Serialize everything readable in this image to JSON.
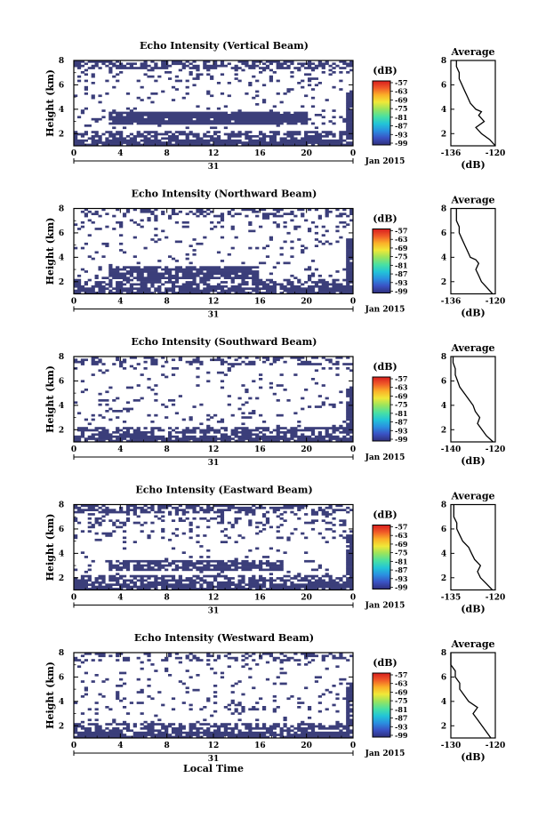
{
  "chart_data": [
    {
      "type": "heatmap",
      "title": "Echo Intensity (Vertical Beam)",
      "ylabel": "Height (km)",
      "ylim": [
        1,
        8
      ],
      "yticks": [
        "2",
        "4",
        "6",
        "8"
      ],
      "xlim": [
        0,
        24
      ],
      "xticks": [
        "0",
        "4",
        "8",
        "12",
        "16",
        "20",
        "0"
      ],
      "date_day": "31",
      "date_label": "Jan 2015",
      "colorbar": {
        "unit": "(dB)",
        "ticks": [
          "-57",
          "-63",
          "-69",
          "-75",
          "-81",
          "-87",
          "-93",
          "-99"
        ]
      },
      "features": {
        "top_band_cover": 0.55,
        "upper_cover": 0.12,
        "layer_km": [
          2.7,
          3.8
        ],
        "layer_cover": 0.95,
        "layer_hours": [
          3,
          20
        ],
        "low_cover": 0.9,
        "end_spike": true
      },
      "profile": {
        "title": "Average",
        "xlabel": "(dB)",
        "xlim": [
          -136,
          -120
        ],
        "xticks": [
          "-136",
          "-120"
        ],
        "yticks": [
          "2",
          "4",
          "6",
          "8"
        ],
        "height_km": [
          1.0,
          1.5,
          2.0,
          2.5,
          3.0,
          3.5,
          3.8,
          4.0,
          4.5,
          5.0,
          5.5,
          6.0,
          6.5,
          7.0,
          7.5,
          8.0
        ],
        "value_db": [
          -120,
          -122,
          -125,
          -127,
          -124,
          -126,
          -125,
          -127,
          -129,
          -130,
          -131,
          -132,
          -133,
          -133,
          -134,
          -134
        ]
      }
    },
    {
      "type": "heatmap",
      "title": "Echo Intensity (Northward Beam)",
      "ylabel": "Height (km)",
      "ylim": [
        1,
        8
      ],
      "yticks": [
        "2",
        "4",
        "6",
        "8"
      ],
      "xlim": [
        0,
        24
      ],
      "xticks": [
        "0",
        "4",
        "8",
        "12",
        "16",
        "20",
        "0"
      ],
      "date_day": "31",
      "date_label": "Jan 2015",
      "colorbar": {
        "unit": "(dB)",
        "ticks": [
          "-57",
          "-63",
          "-69",
          "-75",
          "-81",
          "-87",
          "-93",
          "-99"
        ]
      },
      "features": {
        "top_band_cover": 0.35,
        "upper_cover": 0.1,
        "layer_km": [
          2.3,
          3.3
        ],
        "layer_cover": 0.8,
        "layer_hours": [
          3,
          16
        ],
        "low_cover": 0.85,
        "end_spike": true
      },
      "profile": {
        "title": "Average",
        "xlabel": "(dB)",
        "xlim": [
          -136,
          -120
        ],
        "xticks": [
          "-136",
          "-120"
        ],
        "yticks": [
          "2",
          "4",
          "6",
          "8"
        ],
        "height_km": [
          1.0,
          1.5,
          2.0,
          2.5,
          3.0,
          3.5,
          3.8,
          4.0,
          4.5,
          5.0,
          5.5,
          6.0,
          6.5,
          7.0,
          7.5,
          8.0
        ],
        "value_db": [
          -121,
          -123,
          -125,
          -126,
          -127,
          -126,
          -127,
          -129,
          -130,
          -131,
          -132,
          -133,
          -133,
          -134,
          -134,
          -134
        ]
      }
    },
    {
      "type": "heatmap",
      "title": "Echo Intensity (Southward Beam)",
      "ylabel": "Height (km)",
      "ylim": [
        1,
        8
      ],
      "yticks": [
        "2",
        "4",
        "6",
        "8"
      ],
      "xlim": [
        0,
        24
      ],
      "xticks": [
        "0",
        "4",
        "8",
        "12",
        "16",
        "20",
        "0"
      ],
      "date_day": "31",
      "date_label": "Jan 2015",
      "colorbar": {
        "unit": "(dB)",
        "ticks": [
          "-57",
          "-63",
          "-69",
          "-75",
          "-81",
          "-87",
          "-93",
          "-99"
        ]
      },
      "features": {
        "top_band_cover": 0.3,
        "upper_cover": 0.06,
        "layer_km": [
          3.0,
          3.5
        ],
        "layer_cover": 0.15,
        "layer_hours": [
          11,
          13
        ],
        "low_cover": 0.85,
        "end_spike": true
      },
      "profile": {
        "title": "Average",
        "xlabel": "(dB)",
        "xlim": [
          -140,
          -120
        ],
        "xticks": [
          "-140",
          "-120"
        ],
        "yticks": [
          "2",
          "4",
          "6",
          "8"
        ],
        "height_km": [
          1.0,
          1.5,
          2.0,
          2.5,
          3.0,
          3.5,
          4.0,
          4.5,
          5.0,
          5.5,
          6.0,
          6.5,
          7.0,
          7.5,
          8.0
        ],
        "value_db": [
          -121,
          -124,
          -126,
          -128,
          -127,
          -129,
          -130,
          -132,
          -134,
          -136,
          -137,
          -138,
          -138,
          -139,
          -139
        ]
      }
    },
    {
      "type": "heatmap",
      "title": "Echo Intensity (Eastward Beam)",
      "ylabel": "Height (km)",
      "ylim": [
        1,
        8
      ],
      "yticks": [
        "2",
        "4",
        "6",
        "8"
      ],
      "xlim": [
        0,
        24
      ],
      "xticks": [
        "0",
        "4",
        "8",
        "12",
        "16",
        "20",
        "0"
      ],
      "date_day": "31",
      "date_label": "Jan 2015",
      "colorbar": {
        "unit": "(dB)",
        "ticks": [
          "-57",
          "-63",
          "-69",
          "-75",
          "-81",
          "-87",
          "-93",
          "-99"
        ]
      },
      "features": {
        "top_band_cover": 0.55,
        "upper_cover": 0.15,
        "layer_km": [
          2.5,
          3.5
        ],
        "layer_cover": 0.75,
        "layer_hours": [
          3,
          18
        ],
        "low_cover": 0.9,
        "end_spike": true
      },
      "profile": {
        "title": "Average",
        "xlabel": "(dB)",
        "xlim": [
          -135,
          -120
        ],
        "xticks": [
          "-135",
          "-120"
        ],
        "yticks": [
          "2",
          "4",
          "6",
          "8"
        ],
        "height_km": [
          1.0,
          1.5,
          2.0,
          2.5,
          3.0,
          3.5,
          4.0,
          4.5,
          5.0,
          5.5,
          6.0,
          6.5,
          7.0,
          7.5,
          8.0
        ],
        "value_db": [
          -121,
          -123,
          -125,
          -126,
          -125,
          -127,
          -128,
          -129,
          -131,
          -132,
          -133,
          -133,
          -134,
          -134,
          -134
        ]
      }
    },
    {
      "type": "heatmap",
      "title": "Echo Intensity (Westward Beam)",
      "ylabel": "Height (km)",
      "ylim": [
        1,
        8
      ],
      "yticks": [
        "2",
        "4",
        "6",
        "8"
      ],
      "xlim": [
        0,
        24
      ],
      "xticks": [
        "0",
        "4",
        "8",
        "12",
        "16",
        "20",
        "0"
      ],
      "date_day": "31",
      "date_label": "Jan 2015",
      "xlabel": "Local Time",
      "colorbar": {
        "unit": "(dB)",
        "ticks": [
          "-57",
          "-63",
          "-69",
          "-75",
          "-81",
          "-87",
          "-93",
          "-99"
        ]
      },
      "features": {
        "top_band_cover": 0.3,
        "upper_cover": 0.08,
        "layer_km": [
          3.0,
          4.2
        ],
        "layer_cover": 0.2,
        "layer_hours": [
          13,
          16
        ],
        "low_cover": 0.85,
        "end_spike": true
      },
      "profile": {
        "title": "Average",
        "xlabel": "(dB)",
        "xlim": [
          -130,
          -120
        ],
        "xticks": [
          "-130",
          "-120"
        ],
        "yticks": [
          "2",
          "4",
          "6",
          "8"
        ],
        "height_km": [
          1.0,
          1.5,
          2.0,
          2.5,
          3.0,
          3.5,
          4.0,
          4.5,
          5.0,
          5.5,
          6.0,
          6.5,
          7.0,
          7.5,
          8.0
        ],
        "value_db": [
          -121,
          -122,
          -123,
          -124,
          -125,
          -124,
          -126,
          -127,
          -128,
          -128,
          -129,
          -129,
          -130,
          -130,
          -130
        ]
      }
    }
  ],
  "colors": {
    "echo_fill": "#3b3e7a",
    "colorbar_stops": [
      "#30307c",
      "#3a52c4",
      "#2a8fe0",
      "#22c4d8",
      "#48e0a4",
      "#9be45c",
      "#f0e838",
      "#fbb028",
      "#f05a28",
      "#d81e1e"
    ]
  }
}
